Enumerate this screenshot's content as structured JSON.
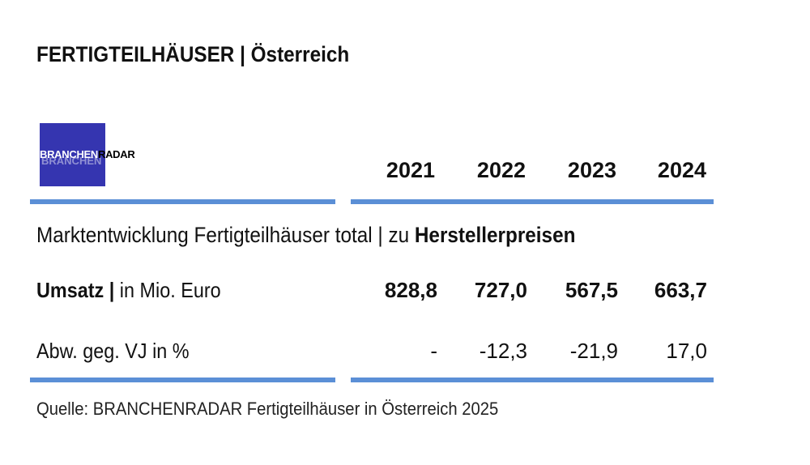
{
  "title": "FERTIGTEILHÄUSER | Österreich",
  "logo": {
    "part1": "BRANCHEN",
    "part2": "RADAR",
    "color": "#3535b0"
  },
  "accent_color": "#5b8fd6",
  "table": {
    "years": [
      "2021",
      "2022",
      "2023",
      "2024"
    ],
    "subtitle_prefix": "Marktentwicklung Fertigteilhäuser total | zu ",
    "subtitle_bold": "Herstellerpreisen",
    "rows": [
      {
        "label_bold": "Umsatz |",
        "label": " in Mio. Euro",
        "values": [
          "828,8",
          "727,0",
          "567,5",
          "663,7"
        ]
      },
      {
        "label_bold": "",
        "label": "Abw. geg. VJ in %",
        "values": [
          "-",
          "-12,3",
          "-21,9",
          "17,0"
        ]
      }
    ]
  },
  "source": "Quelle: BRANCHENRADAR Fertigteilhäuser in Österreich 2025"
}
